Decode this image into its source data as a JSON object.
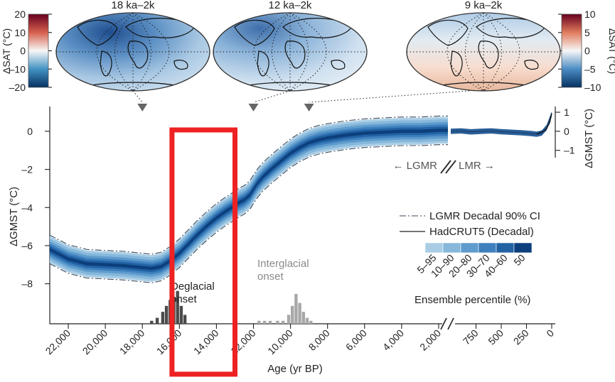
{
  "maps": [
    {
      "title": "18 ka–2k",
      "tone": "cold"
    },
    {
      "title": "12 ka–2k",
      "tone": "mid"
    },
    {
      "title": "9 ka–2k",
      "tone": "warm"
    }
  ],
  "colorbar_left": {
    "label": "ΔSAT (°C)",
    "ticks": [
      "20",
      "10",
      "0",
      "–10",
      "–20"
    ]
  },
  "colorbar_right": {
    "label": "ΔSAT (°C)",
    "ticks": [
      "10",
      "5",
      "0",
      "–5",
      "–10"
    ]
  },
  "annotations": {
    "deglacial": [
      "Deglacial",
      "onset"
    ],
    "interglacial": [
      "Interglacial",
      "onset"
    ],
    "lgmr_arrow": "← LGMR",
    "lmr_arrow": "LMR →"
  },
  "legend": {
    "items": [
      "LGMR Decadal 90% CI",
      "HadCRUT5 (Decadal)"
    ],
    "percentile_labels": [
      "5–95",
      "10–90",
      "20–80",
      "30–70",
      "40–60",
      "50"
    ],
    "percentile_colors": [
      "#a9cde5",
      "#86b8dc",
      "#5f9ccd",
      "#3e80bd",
      "#2262a4",
      "#0c3f7c"
    ],
    "percentile_title": "Ensemble percentile (%)"
  },
  "chart_data": {
    "type": "line",
    "xlabel": "Age (yr BP)",
    "ylabel": "ΔGMST (°C)",
    "ylabel_right": "ΔGMST (°C)",
    "x_ticks_left": [
      "22,000",
      "20,000",
      "18,000",
      "16,000",
      "14,000",
      "12,000",
      "10,000",
      "8,000",
      "6,000",
      "4,000",
      "2,000"
    ],
    "x_ticks_right": [
      "750",
      "500",
      "250",
      "0"
    ],
    "y_ticks": [
      "0",
      "–2",
      "–4",
      "–6",
      "–8"
    ],
    "y_ticks_right": [
      "1",
      "0",
      "–1"
    ],
    "ylim": [
      -10.1,
      1.3
    ],
    "xlim_lgmr": [
      23000,
      1500
    ],
    "xlim_lmr": [
      1000,
      0
    ],
    "series": [
      {
        "name": "LGMR Decadal 90% CI",
        "x": [
          23000,
          22000,
          21000,
          20000,
          19000,
          18000,
          17500,
          17000,
          16500,
          16000,
          15500,
          15000,
          14500,
          14000,
          13500,
          13000,
          12800,
          12500,
          12200,
          12000,
          11800,
          11500,
          11000,
          10500,
          10000,
          9500,
          9000,
          8500,
          8000,
          7000,
          6000,
          5000,
          4000,
          3000,
          2000,
          1500
        ],
        "median": [
          -6.2,
          -6.7,
          -6.95,
          -7.0,
          -7.05,
          -7.15,
          -7.2,
          -7.1,
          -6.8,
          -6.4,
          -5.9,
          -5.4,
          -4.95,
          -4.55,
          -4.2,
          -3.9,
          -3.75,
          -3.6,
          -3.35,
          -3.05,
          -2.75,
          -2.4,
          -1.95,
          -1.55,
          -1.15,
          -0.85,
          -0.6,
          -0.45,
          -0.35,
          -0.2,
          -0.1,
          -0.05,
          0.0,
          0.0,
          0.05,
          0.05
        ],
        "ci_halfwidth": 0.7
      },
      {
        "name": "LMR",
        "x": [
          1000,
          900,
          800,
          700,
          600,
          500,
          400,
          300,
          200,
          150,
          100,
          50,
          0
        ],
        "median": [
          0.0,
          0.02,
          -0.03,
          0.0,
          0.02,
          -0.02,
          -0.05,
          -0.08,
          -0.12,
          -0.15,
          -0.1,
          0.2,
          0.9
        ]
      }
    ],
    "histograms": [
      {
        "name": "Deglacial onset",
        "color": "#4a4a4a",
        "x": [
          17500,
          17200,
          16900,
          16700,
          16500,
          16300,
          16100,
          15900,
          15700
        ],
        "counts": [
          1,
          2,
          4,
          6,
          8,
          9,
          11,
          6,
          3
        ]
      },
      {
        "name": "Interglacial onset",
        "color": "#a8a8a8",
        "x": [
          11700,
          11400,
          11100,
          10700,
          10400,
          10100,
          9900,
          9700,
          9500,
          9300,
          9100,
          8900
        ],
        "counts": [
          1,
          1,
          1,
          1,
          1,
          3,
          6,
          10,
          7,
          4,
          2,
          1
        ]
      }
    ],
    "highlight_box": {
      "x_from": 16400,
      "x_to": 13000,
      "color": "#ee2222"
    }
  }
}
